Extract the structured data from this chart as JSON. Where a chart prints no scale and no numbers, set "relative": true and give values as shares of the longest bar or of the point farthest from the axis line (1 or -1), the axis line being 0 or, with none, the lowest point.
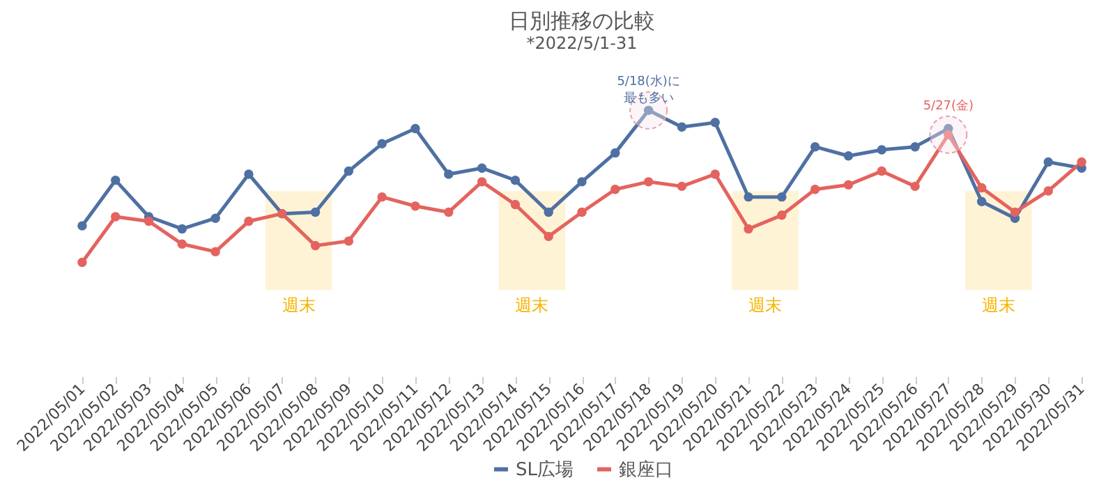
{
  "chart_data": {
    "type": "line",
    "title": "日別推移の比較",
    "subtitle": "*2022/5/1-31",
    "relative": true,
    "marker": "circle",
    "legend": "bottom",
    "grid": false,
    "categories": [
      "2022/05/01",
      "2022/05/02",
      "2022/05/03",
      "2022/05/04",
      "2022/05/05",
      "2022/05/06",
      "2022/05/07",
      "2022/05/08",
      "2022/05/09",
      "2022/05/10",
      "2022/05/11",
      "2022/05/12",
      "2022/05/13",
      "2022/05/14",
      "2022/05/15",
      "2022/05/16",
      "2022/05/17",
      "2022/05/18",
      "2022/05/19",
      "2022/05/20",
      "2022/05/21",
      "2022/05/22",
      "2022/05/23",
      "2022/05/24",
      "2022/05/25",
      "2022/05/26",
      "2022/05/27",
      "2022/05/28",
      "2022/05/29",
      "2022/05/30",
      "2022/05/31"
    ],
    "series": [
      {
        "name": "SL広場",
        "color": "#4e70a3",
        "values": [
          0.24,
          0.54,
          0.3,
          0.22,
          0.29,
          0.58,
          0.32,
          0.33,
          0.6,
          0.78,
          0.88,
          0.58,
          0.62,
          0.54,
          0.33,
          0.53,
          0.72,
          1,
          0.89,
          0.92,
          0.43,
          0.43,
          0.76,
          0.7,
          0.74,
          0.76,
          0.88,
          0.4,
          0.29,
          0.66,
          0.62
        ]
      },
      {
        "name": "銀座口",
        "color": "#e4635e",
        "values": [
          0,
          0.3,
          0.27,
          0.12,
          0.07,
          0.27,
          0.32,
          0.11,
          0.14,
          0.43,
          0.37,
          0.33,
          0.53,
          0.38,
          0.17,
          0.33,
          0.48,
          0.53,
          0.5,
          0.58,
          0.22,
          0.31,
          0.48,
          0.51,
          0.6,
          0.5,
          0.84,
          0.49,
          0.33,
          0.47,
          0.66
        ]
      }
    ],
    "bands": [
      {
        "axis": "x",
        "from": "2022/05/07",
        "to": "2022/05/08",
        "label": "週末",
        "color": "#fff3d6"
      },
      {
        "axis": "x",
        "from": "2022/05/14",
        "to": "2022/05/15",
        "label": "週末",
        "color": "#fff3d6"
      },
      {
        "axis": "x",
        "from": "2022/05/21",
        "to": "2022/05/22",
        "label": "週末",
        "color": "#fff3d6"
      },
      {
        "axis": "x",
        "from": "2022/05/28",
        "to": "2022/05/29",
        "label": "週末",
        "color": "#fff3d6"
      }
    ],
    "annotations": [
      {
        "text": "5/18(水)に最も多い",
        "x": "2022/05/18",
        "y": 1
      },
      {
        "text": "5/27(金)",
        "x": "2022/05/27",
        "y": 0.84
      }
    ]
  }
}
